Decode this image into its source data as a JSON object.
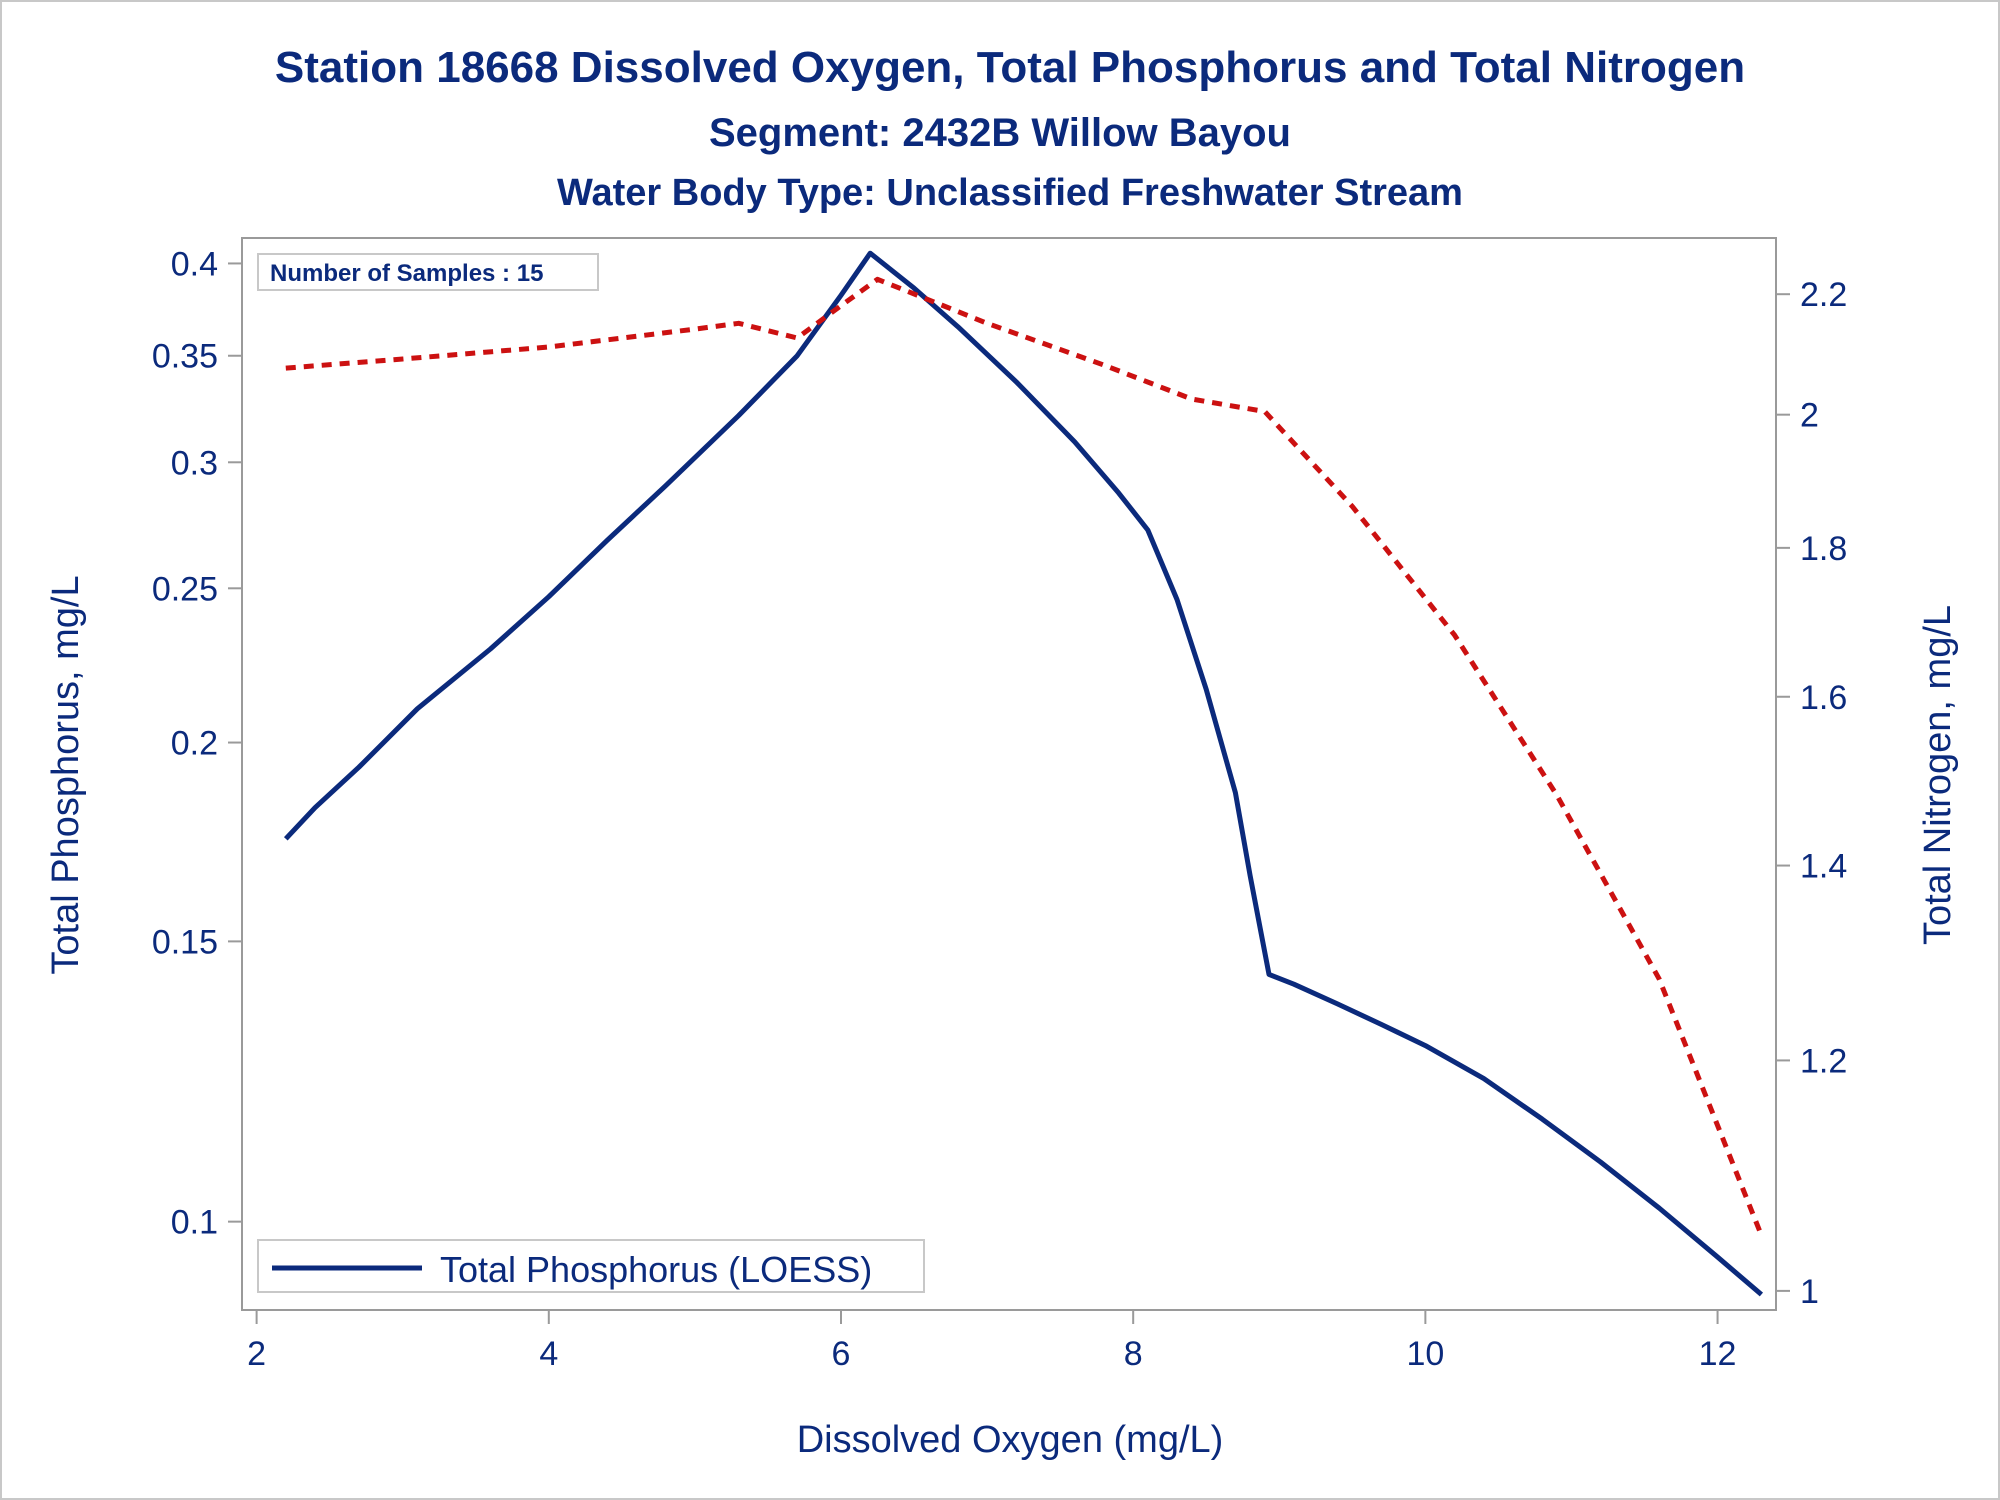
{
  "chart_data": {
    "type": "line",
    "title": "Station 18668  Dissolved Oxygen, Total Phosphorus and Total Nitrogen",
    "subtitle": "Segment: 2432B  Willow Bayou",
    "subtitle2": "Water Body Type: Unclassified Freshwater Stream",
    "xlabel": "Dissolved Oxygen (mg/L)",
    "ylabel_left": "Total Phosphorus, mg/L",
    "ylabel_right": "Total Nitrogen, mg/L",
    "annotation": "Number of Samples : 15",
    "x_ticks": [
      2,
      4,
      6,
      8,
      10,
      12
    ],
    "xlim": [
      1.9,
      12.4
    ],
    "y_left_scale": "log",
    "y_left_ticks": [
      0.1,
      0.15,
      0.2,
      0.25,
      0.3,
      0.35,
      0.4
    ],
    "y_left_tick_labels": [
      "0.1",
      "0.15",
      "0.2",
      "0.25",
      "0.3",
      "0.35",
      "0.4"
    ],
    "ylim_left": [
      0.088,
      0.415
    ],
    "y_right_scale": "log",
    "y_right_ticks": [
      1.0,
      1.2,
      1.4,
      1.6,
      1.8,
      2.0,
      2.2
    ],
    "y_right_tick_labels": [
      "1",
      "1.2",
      "1.4",
      "1.6",
      "1.8",
      "2",
      "2.2"
    ],
    "ylim_right": [
      0.985,
      2.3
    ],
    "grid": false,
    "legend_position": "bottom-left",
    "legend": [
      "Total Phosphorus (LOESS)"
    ],
    "series": [
      {
        "name": "Total Phosphorus (LOESS)",
        "axis": "left",
        "style": "solid",
        "color": "#0b2a7c",
        "x": [
          2.2,
          2.4,
          2.7,
          3.1,
          3.6,
          4.0,
          4.4,
          4.8,
          5.3,
          5.7,
          6.0,
          6.2,
          6.5,
          6.8,
          7.2,
          7.6,
          7.9,
          8.1,
          8.3,
          8.5,
          8.7,
          8.8,
          8.93,
          9.1,
          9.4,
          9.7,
          10.0,
          10.4,
          10.8,
          11.2,
          11.6,
          12.0,
          12.3
        ],
        "y": [
          0.174,
          0.182,
          0.193,
          0.21,
          0.229,
          0.247,
          0.268,
          0.29,
          0.321,
          0.35,
          0.382,
          0.406,
          0.386,
          0.365,
          0.337,
          0.309,
          0.287,
          0.272,
          0.246,
          0.216,
          0.186,
          0.165,
          0.143,
          0.141,
          0.137,
          0.133,
          0.129,
          0.123,
          0.116,
          0.109,
          0.102,
          0.095,
          0.09
        ]
      },
      {
        "name": "",
        "axis": "right",
        "style": "dotted",
        "color": "#cc1111",
        "x": [
          2.2,
          3.0,
          4.0,
          5.0,
          5.3,
          5.7,
          6.0,
          6.25,
          7.0,
          7.8,
          8.4,
          8.9,
          9.5,
          10.2,
          10.9,
          11.6,
          12.3
        ],
        "y": [
          2.075,
          2.09,
          2.11,
          2.14,
          2.15,
          2.125,
          2.18,
          2.226,
          2.15,
          2.08,
          2.025,
          2.005,
          1.86,
          1.68,
          1.48,
          1.28,
          1.045
        ]
      }
    ]
  }
}
